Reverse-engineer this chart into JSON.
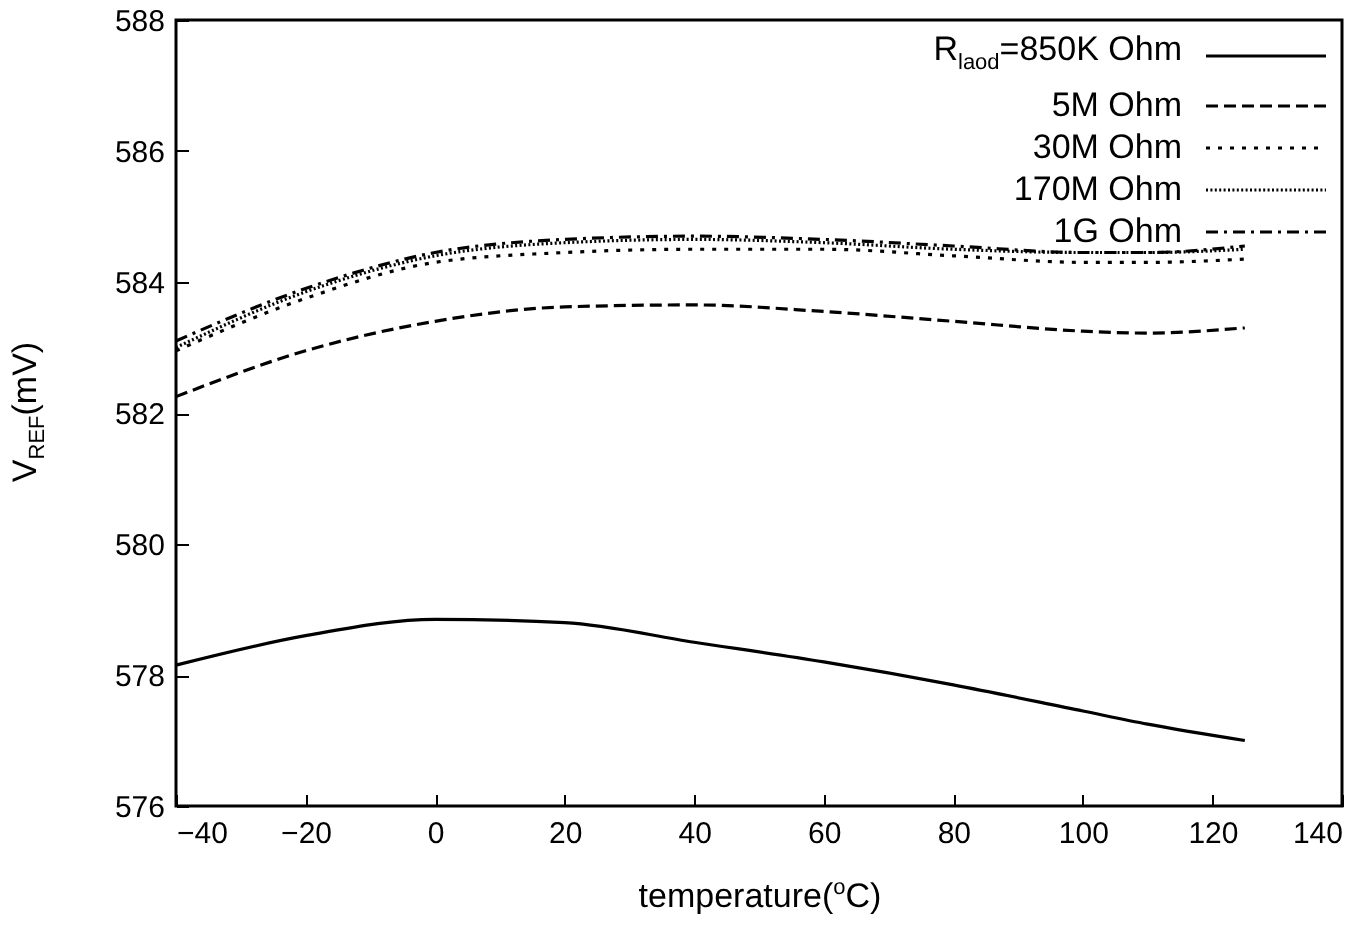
{
  "chart_data": {
    "type": "line",
    "xlabel": "temperature($^{o}$C)",
    "ylabel": "V$_{REF}$(mV)",
    "x": [
      -40,
      -20,
      0,
      20,
      40,
      60,
      80,
      100,
      110,
      125
    ],
    "series": [
      {
        "name": "R$_{laod}$=850K Ohm",
        "color": "#000000",
        "line_style": "solid",
        "values": [
          578.15,
          578.6,
          578.85,
          578.8,
          578.5,
          578.2,
          577.85,
          577.45,
          577.25,
          577.0
        ]
      },
      {
        "name": "5M Ohm",
        "color": "#000000",
        "line_style": "dashed",
        "values": [
          582.25,
          582.95,
          583.4,
          583.62,
          583.65,
          583.55,
          583.4,
          583.25,
          583.22,
          583.3
        ]
      },
      {
        "name": "30M Ohm",
        "color": "#000000",
        "line_style": "dotted",
        "values": [
          582.95,
          583.75,
          584.3,
          584.45,
          584.5,
          584.5,
          584.4,
          584.3,
          584.3,
          584.35
        ]
      },
      {
        "name": "170M Ohm",
        "color": "#000000",
        "line_style": "finedotted",
        "values": [
          583.0,
          583.85,
          584.4,
          584.6,
          584.65,
          584.6,
          584.5,
          584.45,
          584.45,
          584.5
        ]
      },
      {
        "name": "1G Ohm",
        "color": "#000000",
        "line_style": "dashdot",
        "values": [
          583.1,
          583.9,
          584.45,
          584.65,
          584.7,
          584.65,
          584.55,
          584.45,
          584.45,
          584.55
        ]
      }
    ],
    "xlim": [
      -40,
      140
    ],
    "xticks": [
      -40,
      -20,
      0,
      20,
      40,
      60,
      80,
      100,
      120,
      140
    ],
    "ylim": [
      576,
      588
    ],
    "yticks": [
      576,
      578,
      580,
      582,
      584,
      586,
      588
    ],
    "grid": false,
    "legend": "top right",
    "marker": "none"
  }
}
